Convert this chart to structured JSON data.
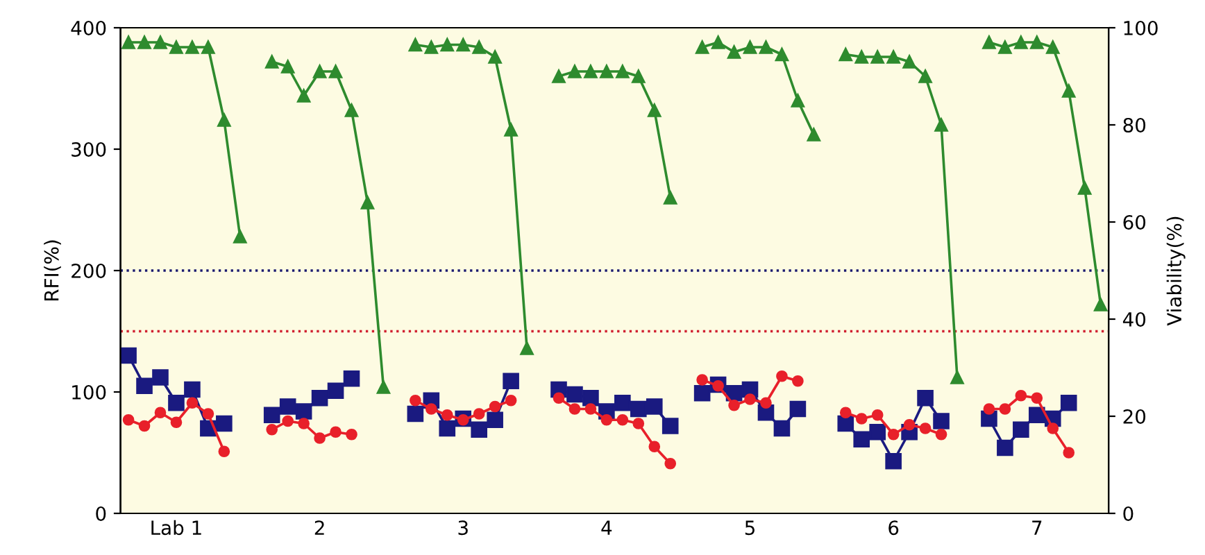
{
  "chart_data": {
    "type": "line",
    "ylabel": "RFI(%)",
    "y2label": "Viability(%)",
    "categories": [
      null,
      null,
      null,
      "Lab 1",
      null,
      null,
      null,
      null,
      null,
      null,
      null,
      null,
      "2",
      null,
      null,
      null,
      null,
      null,
      null,
      null,
      null,
      "3",
      null,
      null,
      null,
      null,
      null,
      null,
      null,
      null,
      "4",
      null,
      null,
      null,
      null,
      null,
      null,
      null,
      null,
      "5",
      null,
      null,
      null,
      null,
      null,
      null,
      null,
      null,
      "6",
      null,
      null,
      null,
      null,
      null,
      null,
      null,
      null,
      "7",
      null,
      null,
      null,
      null
    ],
    "ylim": [
      0,
      400
    ],
    "yticks": [
      0,
      100,
      200,
      300,
      400
    ],
    "y2lim": [
      0,
      100
    ],
    "y2ticks": [
      0,
      20,
      40,
      60,
      80,
      100
    ],
    "grid": false,
    "legend": false,
    "line_style": "solid",
    "ref_lines": [
      {
        "axis": "y",
        "value": 200,
        "color": "#1a1a70",
        "line_style": "dotted"
      },
      {
        "axis": "y",
        "value": 150,
        "color": "#d02030",
        "line_style": "dotted"
      }
    ],
    "series": [
      {
        "color": "#2e8b2e",
        "marker": "triangle",
        "axis": "y2",
        "values": [
          97,
          97,
          97,
          96,
          96,
          96,
          81,
          57,
          null,
          93,
          92,
          86,
          91,
          91,
          83,
          64,
          26,
          null,
          96.5,
          96,
          96.5,
          96.5,
          96,
          94,
          79,
          34,
          null,
          90,
          91,
          91,
          91,
          91,
          90,
          83,
          65,
          null,
          96,
          97,
          95,
          96,
          96,
          94.5,
          85,
          78,
          null,
          94.5,
          94,
          94,
          94,
          93,
          90,
          80,
          28,
          null,
          97,
          96,
          97,
          97,
          96,
          87,
          67,
          43
        ]
      },
      {
        "color": "#1a1a80",
        "marker": "square",
        "values": [
          130,
          105,
          112,
          91,
          102,
          70,
          74,
          null,
          null,
          81,
          88,
          84,
          95,
          101,
          111,
          null,
          null,
          null,
          82,
          93,
          70,
          78,
          69,
          77,
          109,
          null,
          null,
          102,
          98,
          95,
          84,
          91,
          86,
          88,
          72,
          null,
          99,
          106,
          99,
          102,
          83,
          70,
          86,
          null,
          null,
          74,
          61,
          67,
          43,
          67,
          95,
          76,
          null,
          null,
          78,
          54,
          69,
          81,
          78,
          91,
          null,
          null
        ]
      },
      {
        "color": "#e8202a",
        "marker": "circle",
        "values": [
          77,
          72,
          83,
          75,
          91,
          82,
          51,
          null,
          null,
          69,
          76,
          74,
          62,
          67,
          65,
          null,
          null,
          null,
          93,
          86,
          81,
          77,
          82,
          88,
          93,
          null,
          null,
          95,
          86,
          86,
          77,
          77,
          74,
          55,
          41,
          null,
          110,
          105,
          89,
          94,
          91,
          113,
          109,
          null,
          null,
          83,
          78,
          81,
          65,
          73,
          70,
          65,
          null,
          null,
          86,
          86,
          97,
          95,
          70,
          50,
          null,
          null
        ]
      }
    ]
  }
}
